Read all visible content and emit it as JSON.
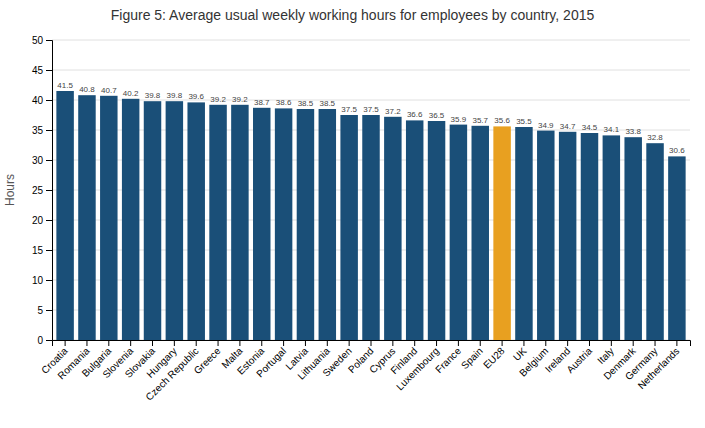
{
  "chart_data": {
    "type": "bar",
    "title": "Figure 5: Average usual weekly working hours for employees by country, 2015",
    "ylabel": "Hours",
    "categories": [
      "Croatia",
      "Romania",
      "Bulgaria",
      "Slovenia",
      "Slovakia",
      "Hungary",
      "Czech Republic",
      "Greece",
      "Malta",
      "Estonia",
      "Portugal",
      "Latvia",
      "Lithuania",
      "Sweden",
      "Poland",
      "Cyprus",
      "Finland",
      "Luxembourg",
      "France",
      "Spain",
      "EU28",
      "UK",
      "Belgium",
      "Ireland",
      "Austria",
      "Italy",
      "Denmark",
      "Germany",
      "Netherlands"
    ],
    "values": [
      41.5,
      40.8,
      40.7,
      40.2,
      39.8,
      39.8,
      39.6,
      39.2,
      39.2,
      38.7,
      38.6,
      38.5,
      38.5,
      37.5,
      37.5,
      37.2,
      36.6,
      36.5,
      35.9,
      35.7,
      35.6,
      35.5,
      34.9,
      34.7,
      34.5,
      34.1,
      33.8,
      32.8,
      30.6
    ],
    "colors": [
      "#1a4f78",
      "#1a4f78",
      "#1a4f78",
      "#1a4f78",
      "#1a4f78",
      "#1a4f78",
      "#1a4f78",
      "#1a4f78",
      "#1a4f78",
      "#1a4f78",
      "#1a4f78",
      "#1a4f78",
      "#1a4f78",
      "#1a4f78",
      "#1a4f78",
      "#1a4f78",
      "#1a4f78",
      "#1a4f78",
      "#1a4f78",
      "#1a4f78",
      "#e8a020",
      "#1a4f78",
      "#1a4f78",
      "#1a4f78",
      "#1a4f78",
      "#1a4f78",
      "#1a4f78",
      "#1a4f78",
      "#1a4f78"
    ],
    "ylim": [
      0,
      50
    ],
    "yticks": [
      0,
      5,
      10,
      15,
      20,
      25,
      30,
      35,
      40,
      45,
      50
    ],
    "grid": true,
    "data_labels": true
  }
}
